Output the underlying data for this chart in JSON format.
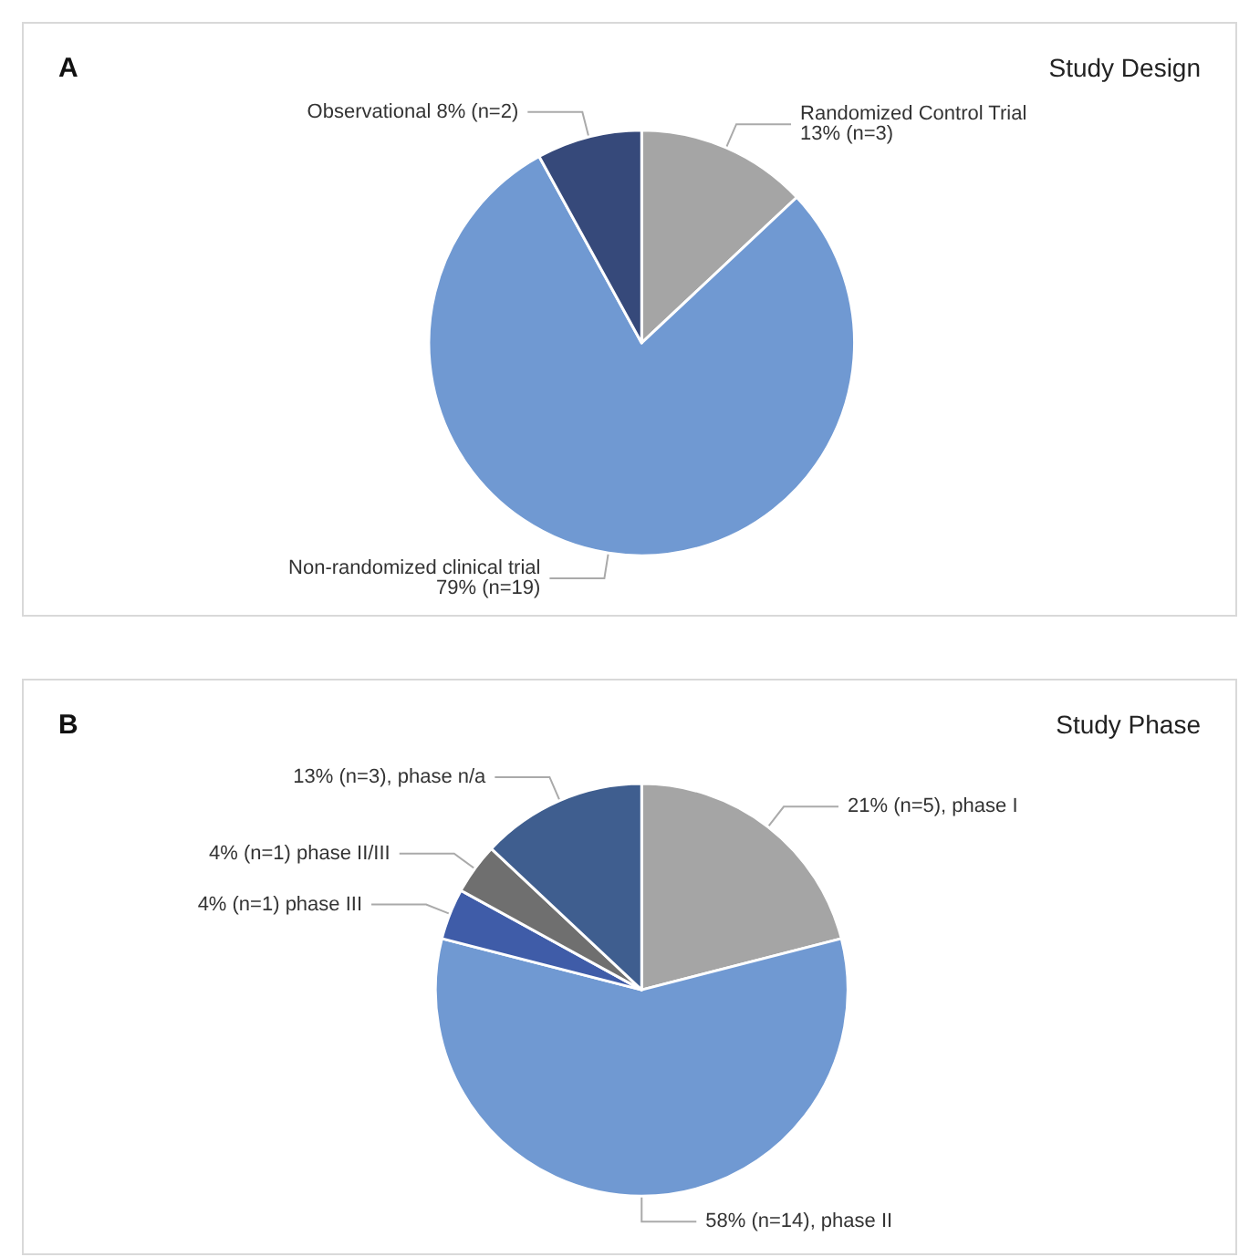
{
  "chart_data": [
    {
      "type": "pie",
      "title": "Study Design",
      "annotations": [
        "A"
      ],
      "categories": [
        "Randomized Control Trial 13% (n=3)",
        "Non-randomized clinical trial 79% (n=19)",
        "Observational 8% (n=2)"
      ],
      "values": [
        13,
        79,
        8
      ],
      "colors": [
        "#a5a5a5",
        "#7099d2",
        "#36497a"
      ]
    },
    {
      "type": "pie",
      "title": "Study Phase",
      "annotations": [
        "B"
      ],
      "categories": [
        "21% (n=5), phase I",
        "58% (n=14), phase II",
        "4% (n=1) phase III",
        "4% (n=1) phase II/III",
        "13% (n=3), phase n/a"
      ],
      "values": [
        21,
        58,
        4,
        4,
        13
      ],
      "colors": [
        "#a5a5a5",
        "#7099d2",
        "#3f5ca8",
        "#6f6f6f",
        "#3f5e8f"
      ]
    }
  ]
}
